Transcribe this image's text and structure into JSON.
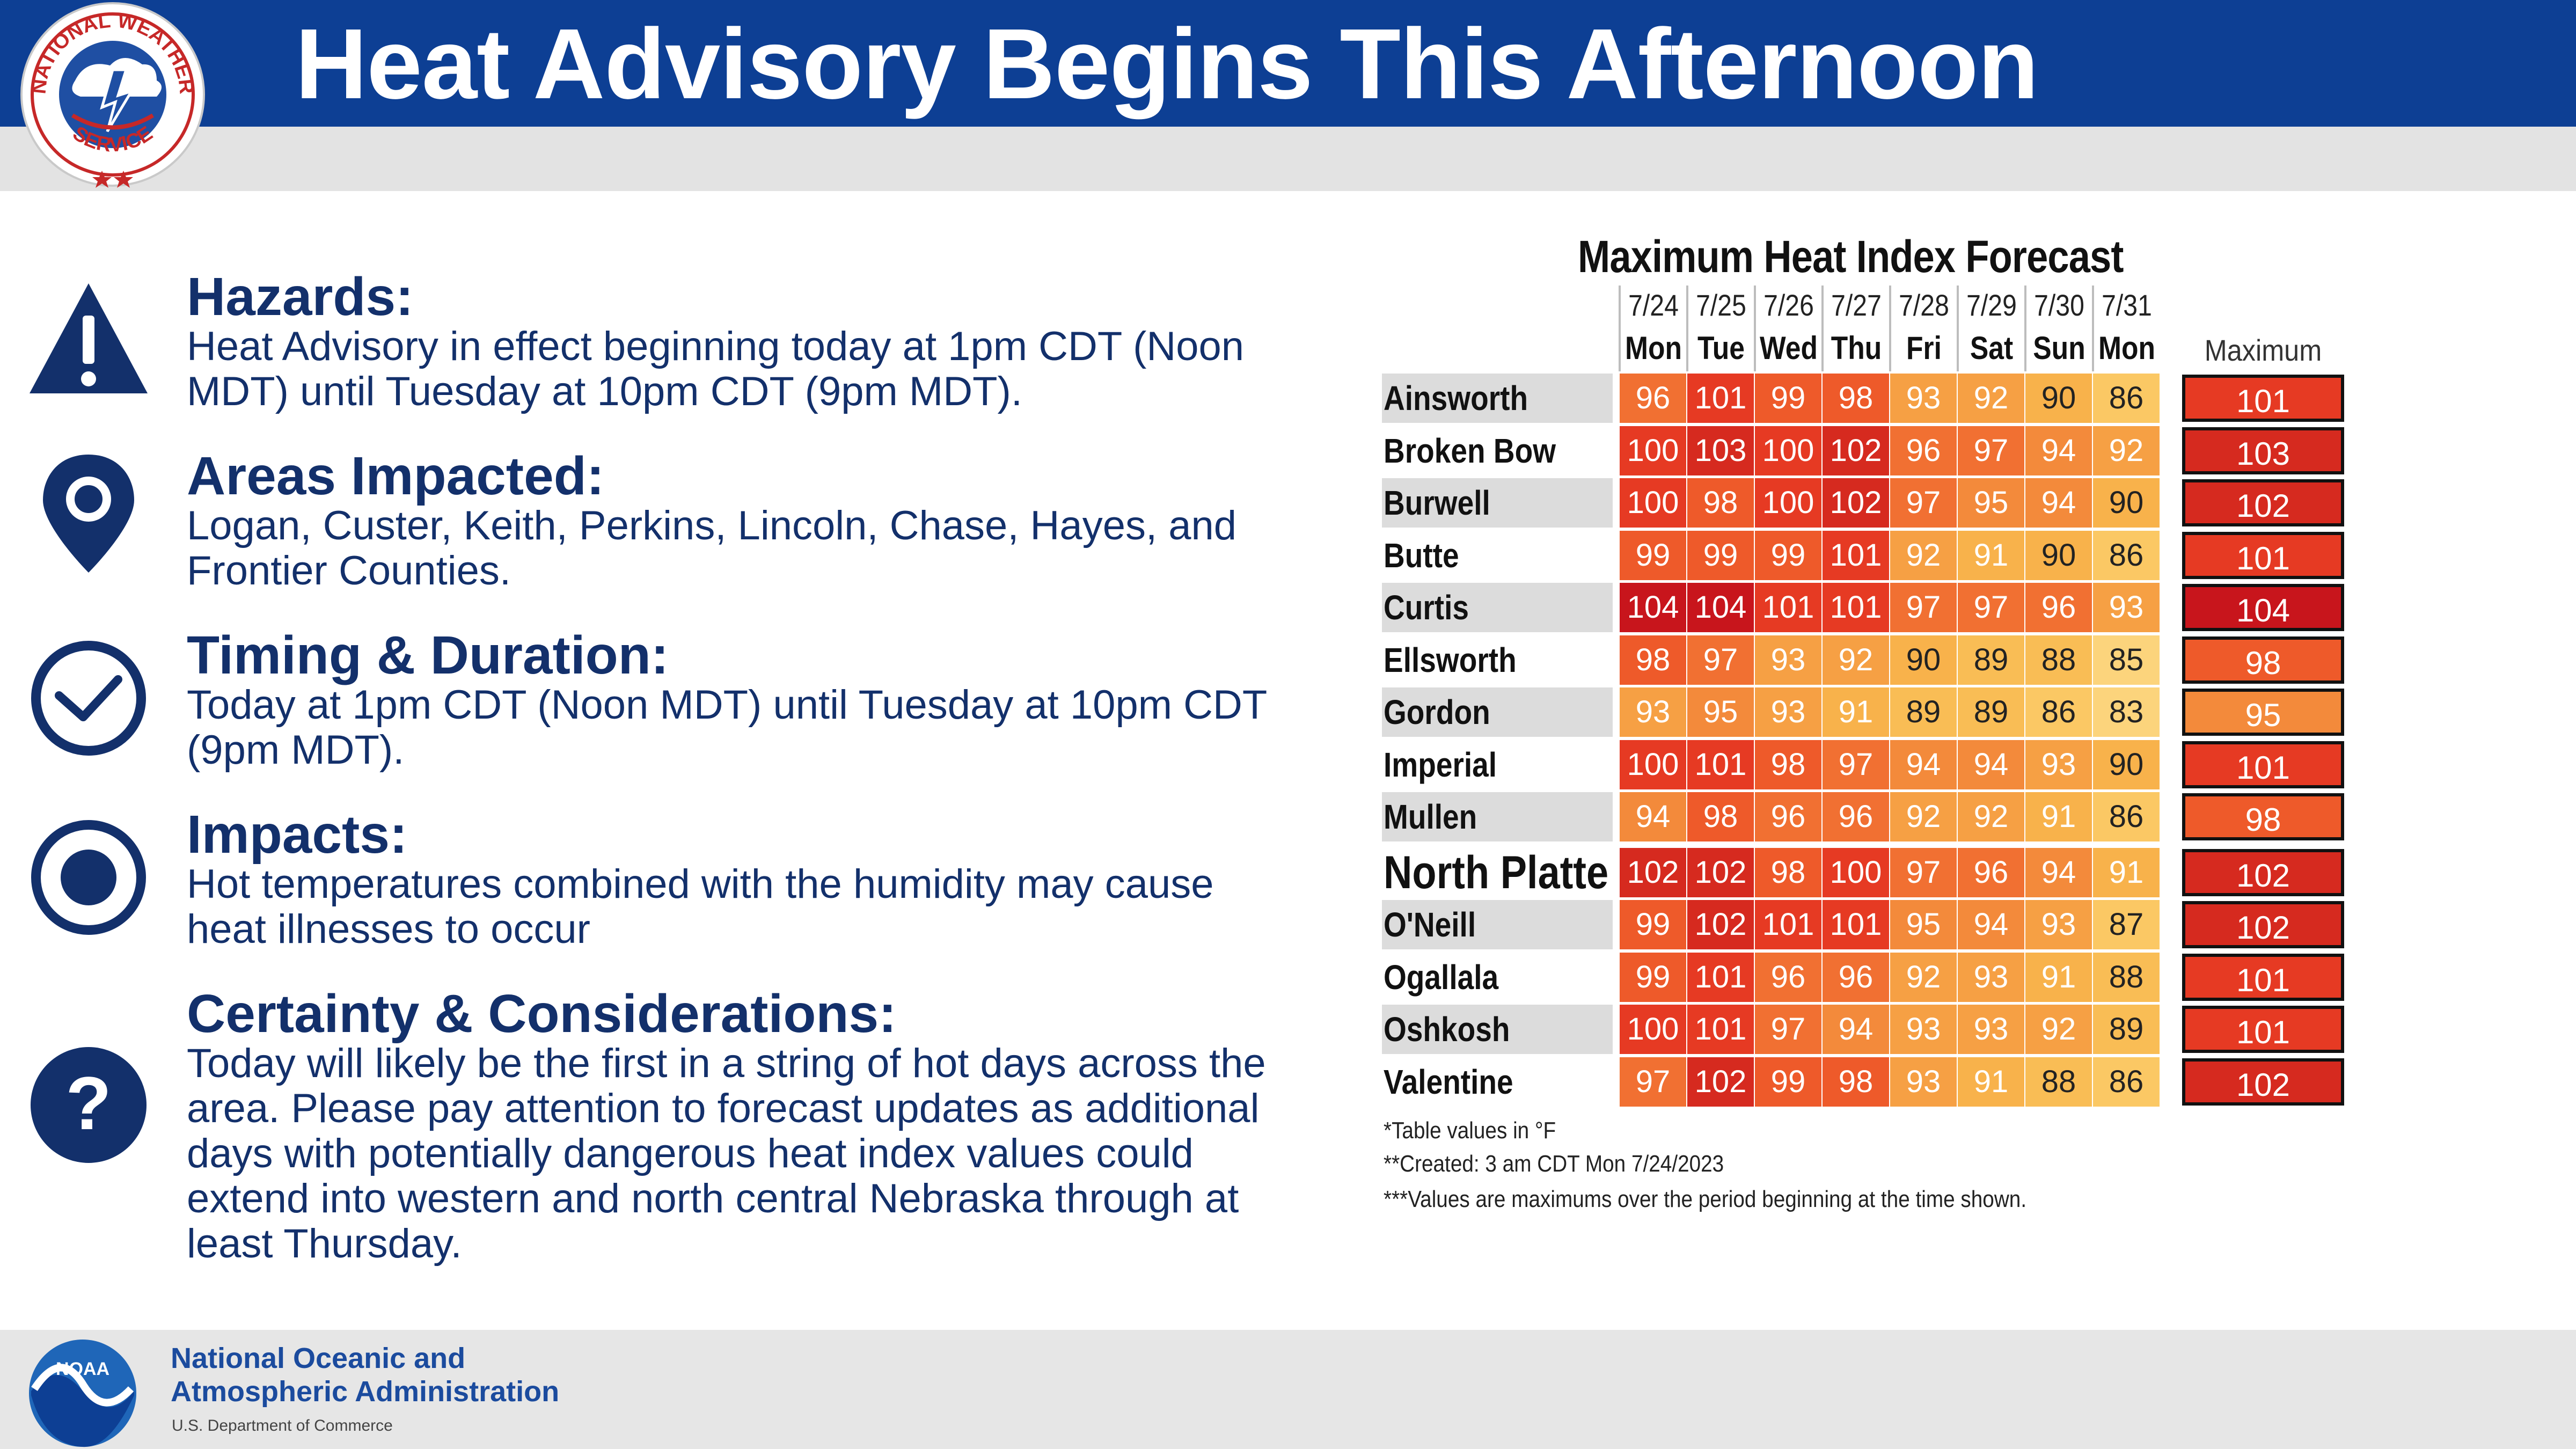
{
  "header": {
    "title": "Heat Advisory Begins This Afternoon",
    "logo_text_top": "NATIONAL WEATHER",
    "logo_text_bottom": "SERVICE"
  },
  "sections": [
    {
      "title": "Hazards:",
      "body": "Heat Advisory in effect beginning today at 1pm CDT (Noon MDT) until Tuesday at 10pm CDT (9pm MDT).",
      "icon": "warning-icon"
    },
    {
      "title": "Areas Impacted:",
      "body": "Logan, Custer, Keith, Perkins, Lincoln, Chase, Hayes, and Frontier Counties.",
      "icon": "location-pin-icon"
    },
    {
      "title": "Timing & Duration:",
      "body": "Today at 1pm CDT (Noon MDT) until Tuesday at 10pm CDT (9pm MDT).",
      "icon": "clock-icon"
    },
    {
      "title": "Impacts:",
      "body": "Hot temperatures combined with the humidity may cause heat illnesses to occur",
      "icon": "target-icon"
    },
    {
      "title": "Certainty & Considerations:",
      "body": "Today will likely be the first in a string of hot days across the area. Please pay attention to forecast updates as additional days with potentially dangerous heat index values could extend into western and north central Nebraska through at least Thursday.",
      "icon": "question-icon"
    }
  ],
  "table": {
    "title": "Maximum Heat Index Forecast",
    "dates": [
      "7/24",
      "7/25",
      "7/26",
      "7/27",
      "7/28",
      "7/29",
      "7/30",
      "7/31"
    ],
    "days": [
      "Mon",
      "Tue",
      "Wed",
      "Thu",
      "Fri",
      "Sat",
      "Sun",
      "Mon"
    ],
    "max_header": "Maximum",
    "rows": [
      {
        "name": "Ainsworth",
        "values": [
          96,
          101,
          99,
          98,
          93,
          92,
          90,
          86
        ],
        "max": 101
      },
      {
        "name": "Broken Bow",
        "values": [
          100,
          103,
          100,
          102,
          96,
          97,
          94,
          92
        ],
        "max": 103
      },
      {
        "name": "Burwell",
        "values": [
          100,
          98,
          100,
          102,
          97,
          95,
          94,
          90
        ],
        "max": 102
      },
      {
        "name": "Butte",
        "values": [
          99,
          99,
          99,
          101,
          92,
          91,
          90,
          86
        ],
        "max": 101
      },
      {
        "name": "Curtis",
        "values": [
          104,
          104,
          101,
          101,
          97,
          97,
          96,
          93
        ],
        "max": 104
      },
      {
        "name": "Ellsworth",
        "values": [
          98,
          97,
          93,
          92,
          90,
          89,
          88,
          85
        ],
        "max": 98
      },
      {
        "name": "Gordon",
        "values": [
          93,
          95,
          93,
          91,
          89,
          89,
          86,
          83
        ],
        "max": 95
      },
      {
        "name": "Imperial",
        "values": [
          100,
          101,
          98,
          97,
          94,
          94,
          93,
          90
        ],
        "max": 101
      },
      {
        "name": "Mullen",
        "values": [
          94,
          98,
          96,
          96,
          92,
          92,
          91,
          86
        ],
        "max": 98
      },
      {
        "name": "North Platte",
        "values": [
          102,
          102,
          98,
          100,
          97,
          96,
          94,
          91
        ],
        "max": 102
      },
      {
        "name": "O'Neill",
        "values": [
          99,
          102,
          101,
          101,
          95,
          94,
          93,
          87
        ],
        "max": 102
      },
      {
        "name": "Ogallala",
        "values": [
          99,
          101,
          96,
          96,
          92,
          93,
          91,
          88
        ],
        "max": 101
      },
      {
        "name": "Oshkosh",
        "values": [
          100,
          101,
          97,
          94,
          93,
          93,
          92,
          89
        ],
        "max": 101
      },
      {
        "name": "Valentine",
        "values": [
          97,
          102,
          99,
          98,
          93,
          91,
          88,
          86
        ],
        "max": 102
      }
    ],
    "notes": [
      "*Table values in °F",
      "**Created: 3 am CDT Mon 7/24/2023",
      "***Values are maximums over the period beginning at the time shown."
    ],
    "colors": {
      "c104": "#c8151c",
      "c102": "#d62a1f",
      "c100": "#e63a23",
      "c98": "#ee5a2a",
      "c96": "#f17032",
      "c94": "#f38a3b",
      "c92": "#f6a044",
      "c90": "#f8b24b",
      "c88": "#f9bd55",
      "c86": "#fbc864",
      "c84": "#fcd47c"
    }
  },
  "footer": {
    "org_line1": "National Oceanic and",
    "org_line2": "Atmospheric Administration",
    "dept": "U.S. Department of Commerce",
    "logo_text": "NOAA"
  }
}
